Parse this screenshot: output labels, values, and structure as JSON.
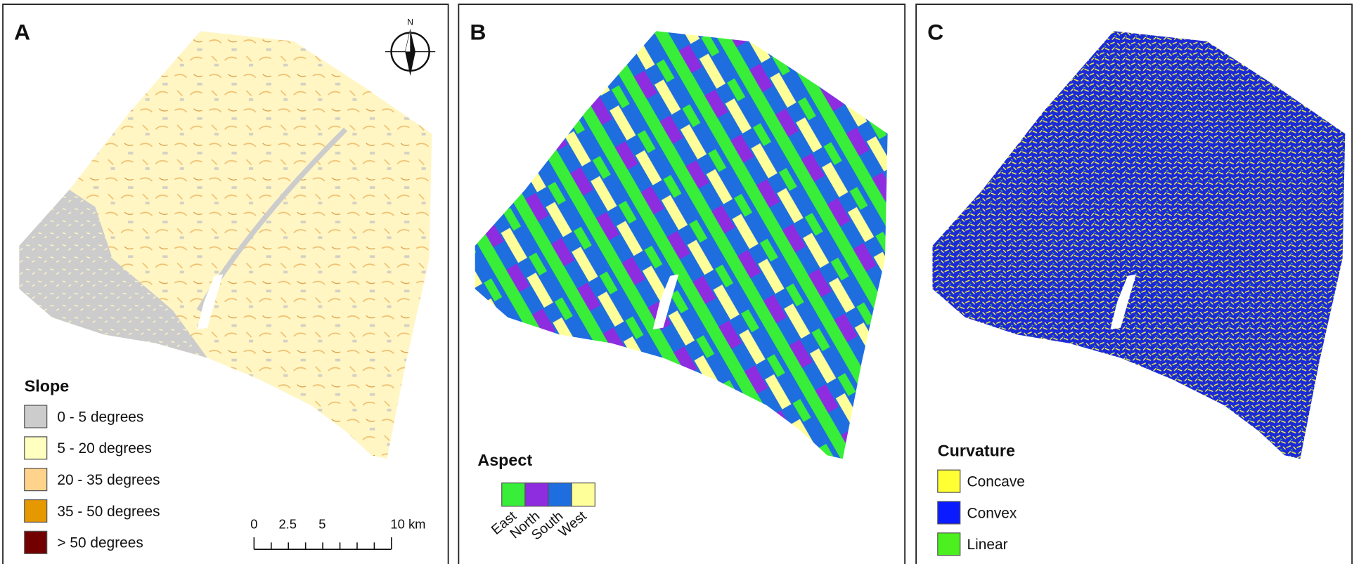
{
  "panels": [
    {
      "letter": "A",
      "legend": {
        "title": "Slope",
        "items": [
          {
            "label": "0 - 5 degrees",
            "color": "#cccccc"
          },
          {
            "label": "5 - 20 degrees",
            "color": "#ffffc0"
          },
          {
            "label": "20 - 35 degrees",
            "color": "#ffd38c"
          },
          {
            "label": "35 - 50 degrees",
            "color": "#e69800"
          },
          {
            "label": "> 50 degrees",
            "color": "#730000"
          }
        ]
      }
    },
    {
      "letter": "B",
      "legend": {
        "title": "Aspect",
        "items": [
          {
            "label": "East",
            "color": "#38ee38"
          },
          {
            "label": "North",
            "color": "#8e2ce0"
          },
          {
            "label": "South",
            "color": "#1e6ee0"
          },
          {
            "label": "West",
            "color": "#ffff99"
          }
        ]
      }
    },
    {
      "letter": "C",
      "legend": {
        "title": "Curvature",
        "items": [
          {
            "label": "Concave",
            "color": "#ffff33"
          },
          {
            "label": "Convex",
            "color": "#0a1cff"
          },
          {
            "label": "Linear",
            "color": "#4cf01e"
          }
        ]
      }
    }
  ],
  "north_arrow": {
    "label": "N"
  },
  "scale_bar": {
    "labels": [
      "0",
      "2.5",
      "5",
      "10 km"
    ]
  }
}
